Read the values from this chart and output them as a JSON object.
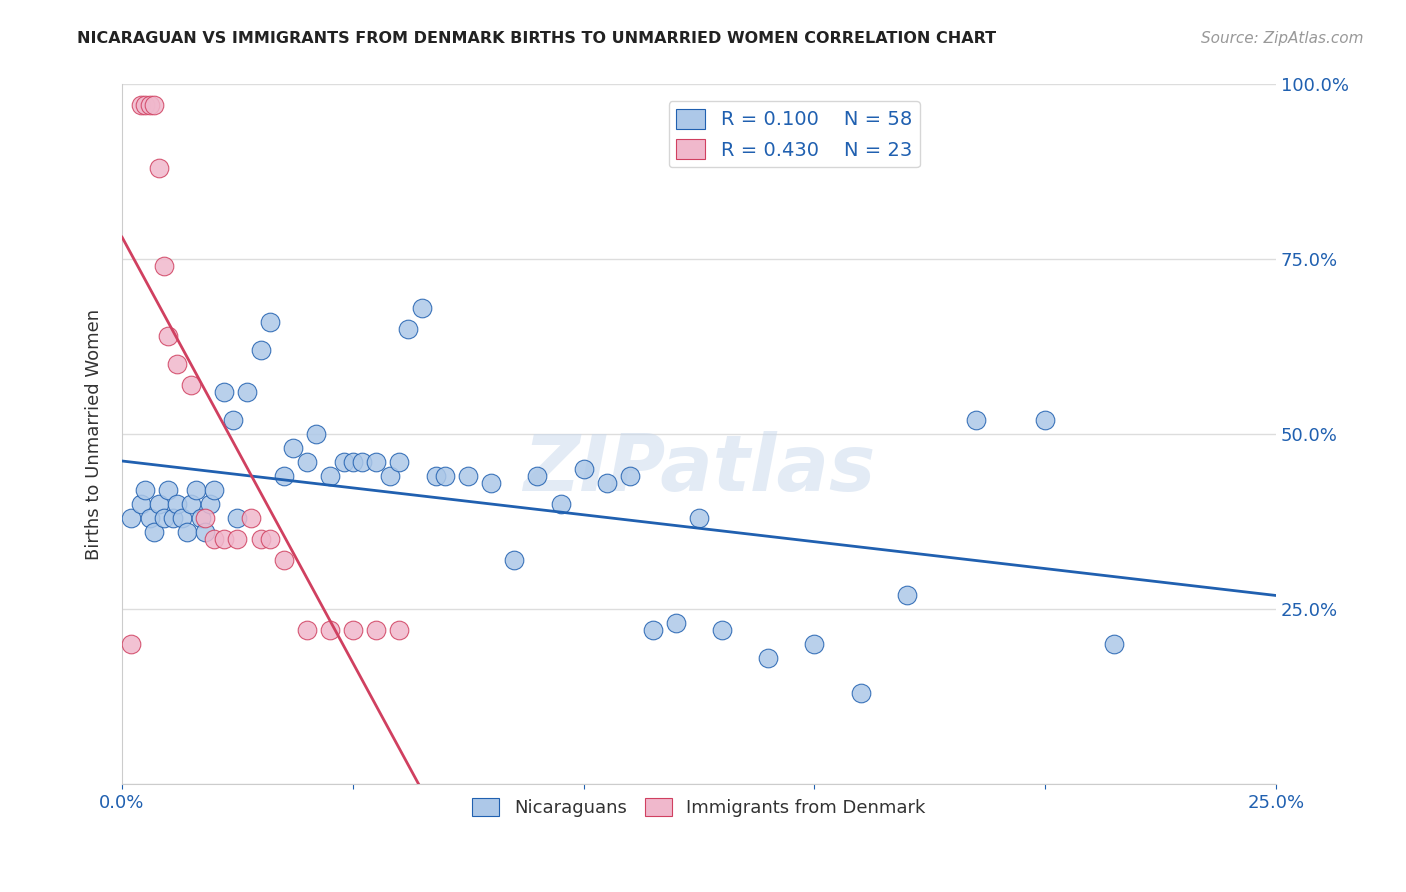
{
  "title": "NICARAGUAN VS IMMIGRANTS FROM DENMARK BIRTHS TO UNMARRIED WOMEN CORRELATION CHART",
  "source": "Source: ZipAtlas.com",
  "ylabel": "Births to Unmarried Women",
  "xlim": [
    0.0,
    0.25
  ],
  "ylim": [
    0.0,
    1.0
  ],
  "legend_labels": [
    "Nicaraguans",
    "Immigrants from Denmark"
  ],
  "blue_color": "#adc8e8",
  "pink_color": "#f0b8cc",
  "blue_line_color": "#2060b0",
  "pink_line_color": "#d04060",
  "blue_R": 0.1,
  "blue_N": 58,
  "pink_R": 0.43,
  "pink_N": 23,
  "blue_scatter_x": [
    0.002,
    0.004,
    0.005,
    0.006,
    0.007,
    0.008,
    0.009,
    0.01,
    0.011,
    0.012,
    0.013,
    0.014,
    0.015,
    0.016,
    0.017,
    0.018,
    0.019,
    0.02,
    0.022,
    0.024,
    0.025,
    0.027,
    0.03,
    0.032,
    0.035,
    0.037,
    0.04,
    0.042,
    0.045,
    0.048,
    0.05,
    0.052,
    0.055,
    0.058,
    0.06,
    0.062,
    0.065,
    0.068,
    0.07,
    0.075,
    0.08,
    0.085,
    0.09,
    0.095,
    0.1,
    0.105,
    0.11,
    0.115,
    0.12,
    0.125,
    0.13,
    0.14,
    0.15,
    0.16,
    0.17,
    0.185,
    0.2,
    0.215
  ],
  "blue_scatter_y": [
    0.38,
    0.4,
    0.42,
    0.38,
    0.36,
    0.4,
    0.38,
    0.42,
    0.38,
    0.4,
    0.38,
    0.36,
    0.4,
    0.42,
    0.38,
    0.36,
    0.4,
    0.42,
    0.56,
    0.52,
    0.38,
    0.56,
    0.62,
    0.66,
    0.44,
    0.48,
    0.46,
    0.5,
    0.44,
    0.46,
    0.46,
    0.46,
    0.46,
    0.44,
    0.46,
    0.65,
    0.68,
    0.44,
    0.44,
    0.44,
    0.43,
    0.32,
    0.44,
    0.4,
    0.45,
    0.43,
    0.44,
    0.22,
    0.23,
    0.38,
    0.22,
    0.18,
    0.2,
    0.13,
    0.27,
    0.52,
    0.52,
    0.2
  ],
  "pink_scatter_x": [
    0.002,
    0.004,
    0.005,
    0.006,
    0.007,
    0.008,
    0.009,
    0.01,
    0.012,
    0.015,
    0.018,
    0.02,
    0.022,
    0.025,
    0.028,
    0.03,
    0.032,
    0.035,
    0.04,
    0.045,
    0.05,
    0.055,
    0.06
  ],
  "pink_scatter_y": [
    0.2,
    0.97,
    0.97,
    0.97,
    0.97,
    0.88,
    0.74,
    0.64,
    0.6,
    0.57,
    0.38,
    0.35,
    0.35,
    0.35,
    0.38,
    0.35,
    0.35,
    0.32,
    0.22,
    0.22,
    0.22,
    0.22,
    0.22
  ],
  "watermark": "ZIPatlas",
  "background_color": "#ffffff",
  "grid_color": "#dddddd"
}
